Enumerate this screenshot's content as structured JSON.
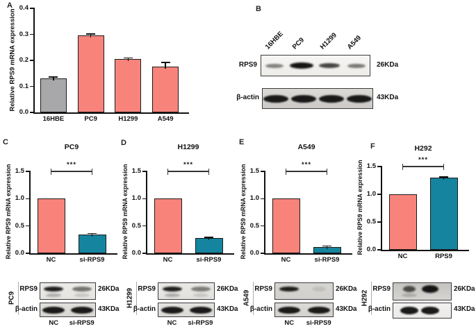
{
  "panel_letters": {
    "A": "A",
    "B": "B",
    "C": "C",
    "D": "D",
    "E": "E",
    "F": "F"
  },
  "colors": {
    "pink": "#F8837B",
    "teal": "#15849F",
    "gray": "#A8A8AA",
    "axis": "#111111"
  },
  "chart_data": [
    {
      "panel": "A",
      "type": "bar",
      "title": "",
      "ylabel": "Relative RPS9 mRNA expression",
      "ylim": [
        0,
        0.4
      ],
      "yticks": [
        0.0,
        0.1,
        0.2,
        0.3,
        0.4
      ],
      "categories": [
        "16HBE",
        "PC9",
        "H1299",
        "A549"
      ],
      "values": [
        0.13,
        0.295,
        0.205,
        0.175
      ],
      "errors": [
        0.006,
        0.007,
        0.004,
        0.017
      ],
      "bar_colors": [
        "gray",
        "pink",
        "pink",
        "pink"
      ],
      "significance": null,
      "grid": false,
      "legend": false
    },
    {
      "panel": "C",
      "type": "bar",
      "title": "PC9",
      "ylabel": "Relative RPS9 mRNA expression",
      "ylim": [
        0,
        1.5
      ],
      "yticks": [
        0.0,
        0.5,
        1.0,
        1.5
      ],
      "categories": [
        "NC",
        "si-RPS9"
      ],
      "values": [
        1.0,
        0.34
      ],
      "errors": [
        0,
        0.02
      ],
      "bar_colors": [
        "pink",
        "teal"
      ],
      "significance": "***",
      "grid": false,
      "legend": false
    },
    {
      "panel": "D",
      "type": "bar",
      "title": "H1299",
      "ylabel": "Relative RPS9 mRNA expression",
      "ylim": [
        0,
        1.5
      ],
      "yticks": [
        0.0,
        0.5,
        1.0,
        1.5
      ],
      "categories": [
        "NC",
        "si-RPS9"
      ],
      "values": [
        1.0,
        0.28
      ],
      "errors": [
        0,
        0.015
      ],
      "bar_colors": [
        "pink",
        "teal"
      ],
      "significance": "***",
      "grid": false,
      "legend": false
    },
    {
      "panel": "E",
      "type": "bar",
      "title": "A549",
      "ylabel": "Relative RPS9 mRNA expression",
      "ylim": [
        0,
        1.5
      ],
      "yticks": [
        0.0,
        0.5,
        1.0,
        1.5
      ],
      "categories": [
        "NC",
        "si-RPS9"
      ],
      "values": [
        1.0,
        0.12
      ],
      "errors": [
        0,
        0.012
      ],
      "bar_colors": [
        "pink",
        "teal"
      ],
      "significance": "***",
      "grid": false,
      "legend": false
    },
    {
      "panel": "F",
      "type": "bar",
      "title": "H292",
      "ylabel": "Relative RPS9 mRNA expression",
      "ylim": [
        0,
        1.5
      ],
      "yticks": [
        0.0,
        0.5,
        1.0,
        1.5
      ],
      "categories": [
        "NC",
        "RPS9"
      ],
      "values": [
        1.0,
        1.3
      ],
      "errors": [
        0,
        0.015
      ],
      "bar_colors": [
        "pink",
        "teal"
      ],
      "significance": "***",
      "grid": false,
      "legend": false
    }
  ],
  "western_blots": {
    "panel_b": {
      "lane_labels": [
        "16HBE",
        "PC9",
        "H1299",
        "A549"
      ],
      "rows": [
        {
          "protein": "RPS9",
          "kda": "26KDa",
          "band_intensities": [
            0.5,
            1.0,
            0.78,
            0.55
          ]
        },
        {
          "protein": "β-actin",
          "kda": "43KDa",
          "band_intensities": [
            0.97,
            0.97,
            0.97,
            0.97
          ]
        }
      ]
    },
    "knockdown_blots": [
      {
        "cell_line": "PC9",
        "lane_labels": [
          "NC",
          "si-RPS9"
        ],
        "rows": [
          {
            "protein": "RPS9",
            "kda": "26KDa",
            "band_intensities": [
              0.95,
              0.55
            ]
          },
          {
            "protein": "β-actin",
            "kda": "43KDa",
            "band_intensities": [
              0.97,
              0.97
            ]
          }
        ]
      },
      {
        "cell_line": "H1299",
        "lane_labels": [
          "NC",
          "si-RPS9"
        ],
        "rows": [
          {
            "protein": "RPS9",
            "kda": "26KDa",
            "band_intensities": [
              0.95,
              0.5
            ]
          },
          {
            "protein": "β-actin",
            "kda": "43KDa",
            "band_intensities": [
              0.97,
              0.97
            ]
          }
        ]
      },
      {
        "cell_line": "A549",
        "lane_labels": [
          "NC",
          "si-RPS9"
        ],
        "rows": [
          {
            "protein": "RPS9",
            "kda": "26KDa",
            "band_intensities": [
              0.95,
              0.1
            ]
          },
          {
            "protein": "β-actin",
            "kda": "43KDa",
            "band_intensities": [
              0.97,
              0.97
            ]
          }
        ]
      },
      {
        "cell_line": "H292",
        "lane_labels": [],
        "rows": [
          {
            "protein": "RPS9",
            "kda": "26KDa",
            "band_intensities": [
              0.7,
              1.0
            ]
          },
          {
            "protein": "β-actin",
            "kda": "43KDa",
            "band_intensities": [
              0.97,
              0.97
            ]
          }
        ]
      }
    ]
  }
}
